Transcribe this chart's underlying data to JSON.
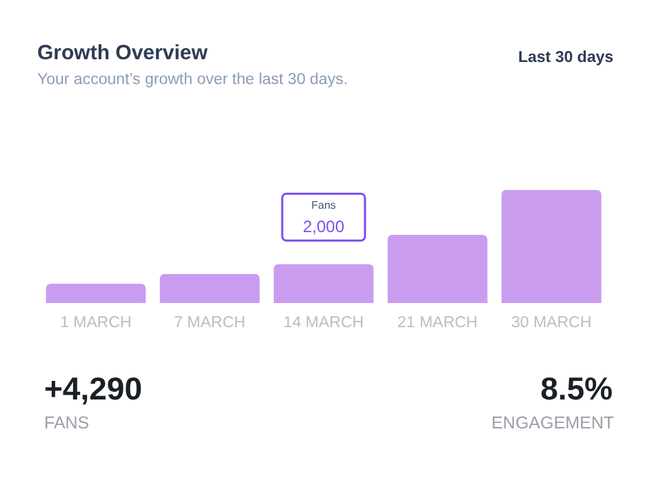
{
  "chart_data": {
    "type": "bar",
    "title": "Growth Overview",
    "subtitle": "Your account’s growth over the last 30 days.",
    "categories": [
      "1 MARCH",
      "7 MARCH",
      "14 MARCH",
      "21 MARCH",
      "30 MARCH"
    ],
    "values": [
      1000,
      1500,
      2000,
      3500,
      5800
    ],
    "value_labels": [
      null,
      null,
      "2,000",
      null,
      null
    ],
    "color": "#c99cf0",
    "grid": false,
    "annotations": [
      "Fans",
      "Last 30 days",
      "+4,290",
      "FANS",
      "8.5%",
      "ENGAGEMENT"
    ]
  }
}
